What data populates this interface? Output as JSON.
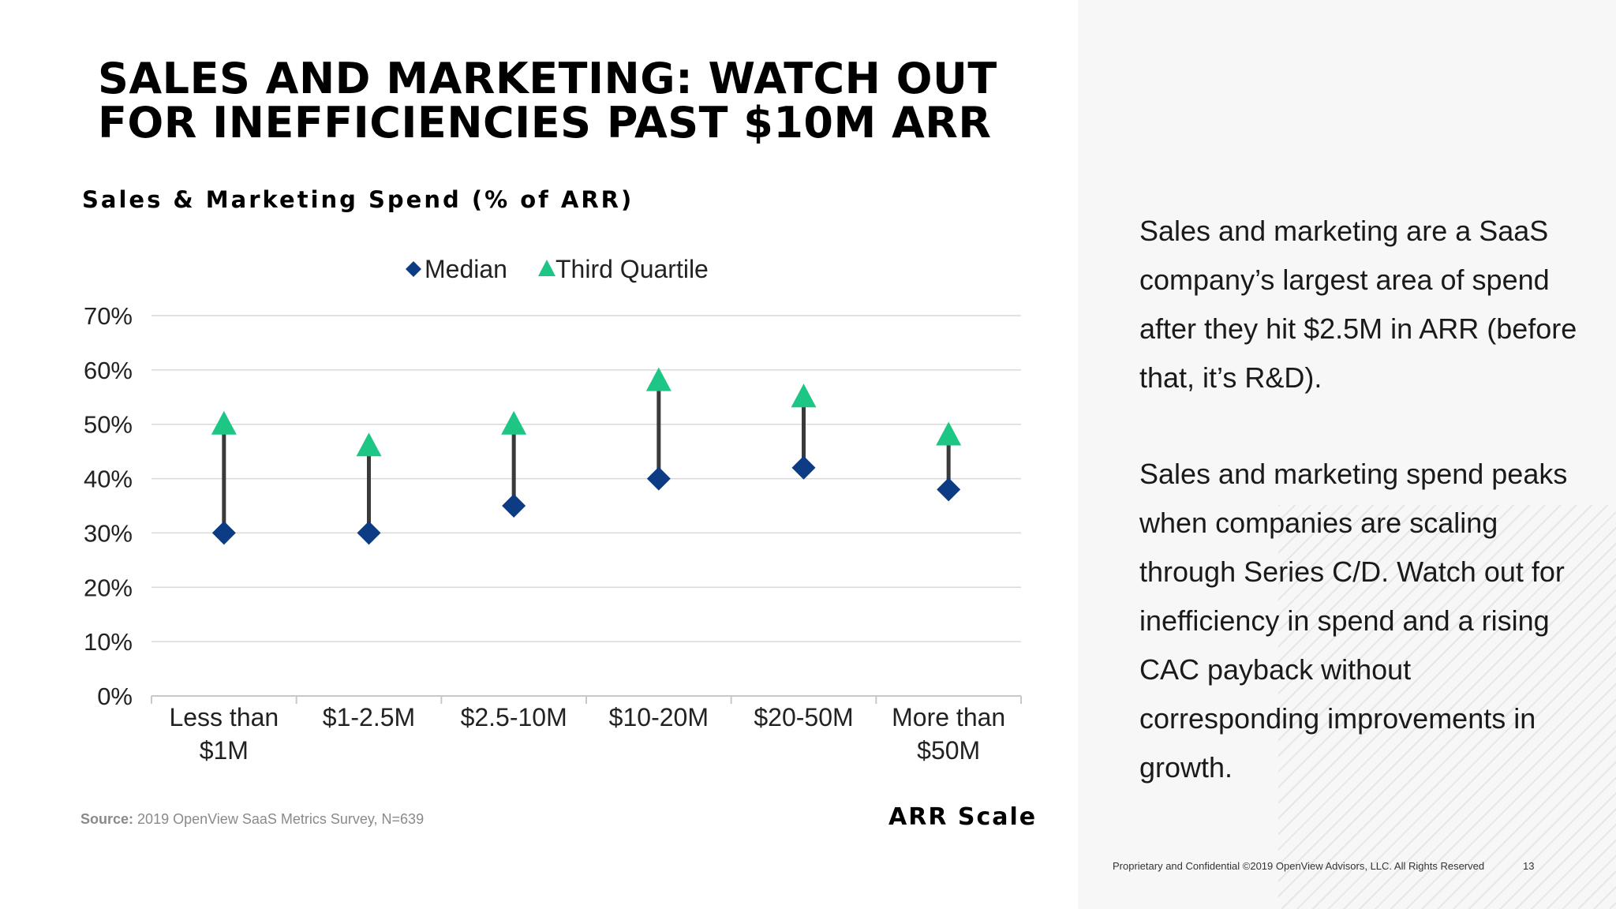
{
  "slide": {
    "title": "SALES AND MARKETING: WATCH OUT FOR INEFFICIENCIES PAST $10M ARR",
    "source_label": "Source:",
    "source_text": "2019 OpenView SaaS Metrics Survey, N=639",
    "body_paragraphs": [
      "Sales and marketing are a SaaS company’s largest area of spend after they hit $2.5M in ARR (before that, it’s R&D).",
      "Sales and marketing spend peaks when companies are scaling through Series C/D. Watch out for inefficiency in spend and a rising CAC payback without corresponding improvements in growth."
    ],
    "footer": "Proprietary and Confidential ©2019 OpenView Advisors, LLC. All Rights Reserved",
    "page_number": "13"
  },
  "colors": {
    "median": "#0d3b84",
    "third_quartile": "#1ec685",
    "connector": "#3a3a3a",
    "grid": "#d9d9d9",
    "text": "#000000"
  },
  "chart_data": {
    "type": "scatter",
    "title": "Sales & Marketing Spend (% of ARR)",
    "xlabel": "ARR Scale",
    "ylabel": "",
    "categories": [
      [
        "Less than",
        "$1M"
      ],
      [
        "$1-2.5M"
      ],
      [
        "$2.5-10M"
      ],
      [
        "$10-20M"
      ],
      [
        "$20-50M"
      ],
      [
        "More than",
        "$50M"
      ]
    ],
    "series": [
      {
        "name": "Median",
        "marker": "diamond",
        "values": [
          30,
          30,
          35,
          40,
          42,
          38
        ]
      },
      {
        "name": "Third Quartile",
        "marker": "triangle",
        "values": [
          50,
          46,
          50,
          58,
          55,
          48
        ]
      }
    ],
    "ylim": [
      0,
      70
    ],
    "yticks": [
      0,
      10,
      20,
      30,
      40,
      50,
      60,
      70
    ],
    "ytick_labels": [
      "0%",
      "10%",
      "20%",
      "30%",
      "40%",
      "50%",
      "60%",
      "70%"
    ],
    "grid": true,
    "legend_position": "top-center",
    "connectors": "vertical line from median to third quartile"
  }
}
